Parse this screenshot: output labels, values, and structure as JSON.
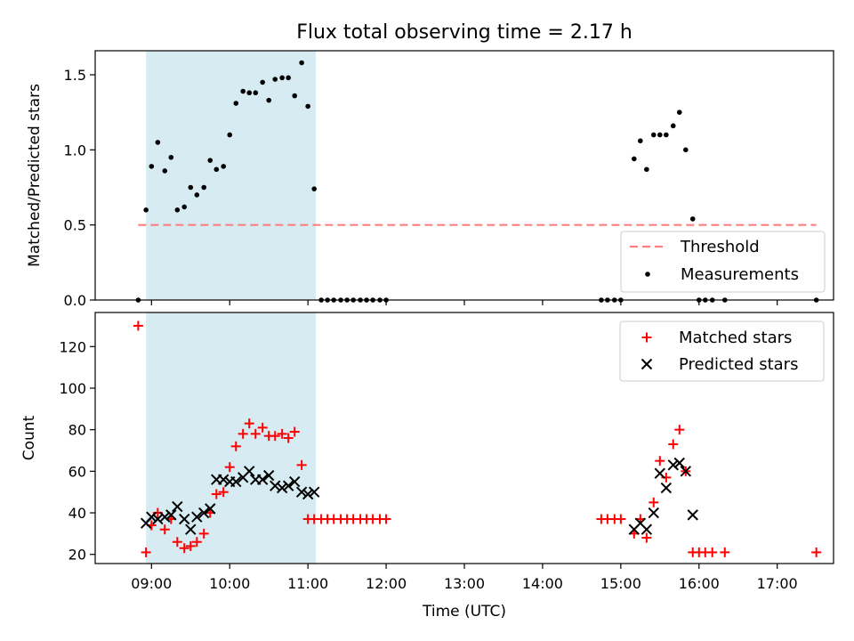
{
  "chart_data": {
    "title": "Flux total observing time = 2.17 h",
    "colors": {
      "highlight": "#add8e6",
      "threshold": "#ff7f7f",
      "matched": "#ff0000",
      "predicted": "#000000",
      "measurement": "#000000"
    },
    "x_unit": "hours UTC (decimal)",
    "xlim": [
      8.28,
      17.72
    ],
    "xticks": [
      9,
      10,
      11,
      12,
      13,
      14,
      15,
      16,
      17
    ],
    "xtick_labels": [
      "09:00",
      "10:00",
      "11:00",
      "12:00",
      "13:00",
      "14:00",
      "15:00",
      "16:00",
      "17:00"
    ],
    "xlabel": "Time (UTC)",
    "highlight_span": [
      8.93,
      11.1
    ],
    "panels": [
      {
        "type": "scatter",
        "ylabel": "Matched/Predicted stars",
        "ylim": [
          0,
          1.66
        ],
        "yticks": [
          0.0,
          0.5,
          1.0,
          1.5
        ],
        "ytick_labels": [
          "0.0",
          "0.5",
          "1.0",
          "1.5"
        ],
        "threshold": {
          "name": "Threshold",
          "value": 0.5,
          "x_range": [
            8.83,
            17.5
          ]
        },
        "series": [
          {
            "name": "Measurements",
            "x": [
              8.83,
              8.93,
              9.0,
              9.08,
              9.17,
              9.25,
              9.33,
              9.42,
              9.5,
              9.58,
              9.67,
              9.75,
              9.83,
              9.92,
              10.0,
              10.08,
              10.17,
              10.25,
              10.33,
              10.42,
              10.5,
              10.58,
              10.67,
              10.75,
              10.83,
              10.92,
              11.0,
              11.08,
              11.17,
              11.25,
              11.33,
              11.42,
              11.5,
              11.58,
              11.67,
              11.75,
              11.83,
              11.92,
              12.0,
              14.75,
              14.83,
              14.92,
              15.0,
              15.17,
              15.25,
              15.33,
              15.42,
              15.5,
              15.58,
              15.67,
              15.75,
              15.83,
              15.92,
              16.0,
              16.08,
              16.17,
              16.33,
              17.5
            ],
            "y": [
              0.0,
              0.6,
              0.89,
              1.05,
              0.86,
              0.95,
              0.6,
              0.62,
              0.75,
              0.7,
              0.75,
              0.93,
              0.87,
              0.89,
              1.1,
              1.31,
              1.39,
              1.38,
              1.38,
              1.45,
              1.33,
              1.47,
              1.48,
              1.48,
              1.36,
              1.58,
              1.29,
              0.74,
              0.0,
              0.0,
              0.0,
              0.0,
              0.0,
              0.0,
              0.0,
              0.0,
              0.0,
              0.0,
              0.0,
              0.0,
              0.0,
              0.0,
              0.0,
              0.94,
              1.06,
              0.87,
              1.1,
              1.1,
              1.1,
              1.16,
              1.25,
              1.0,
              0.54,
              0.0,
              0.0,
              0.0,
              0.0,
              0.0
            ]
          }
        ]
      },
      {
        "type": "scatter",
        "ylabel": "Count",
        "ylim": [
          15.6,
          136.4
        ],
        "yticks": [
          20,
          40,
          60,
          80,
          100,
          120
        ],
        "ytick_labels": [
          "20",
          "40",
          "60",
          "80",
          "100",
          "120"
        ],
        "series": [
          {
            "name": "Matched stars",
            "marker": "plus",
            "x": [
              8.83,
              8.93,
              9.0,
              9.08,
              9.17,
              9.25,
              9.33,
              9.42,
              9.5,
              9.58,
              9.67,
              9.75,
              9.83,
              9.92,
              10.0,
              10.08,
              10.17,
              10.25,
              10.33,
              10.42,
              10.5,
              10.58,
              10.67,
              10.75,
              10.83,
              10.92,
              11.0,
              11.08,
              11.17,
              11.25,
              11.33,
              11.42,
              11.5,
              11.58,
              11.67,
              11.75,
              11.83,
              11.92,
              12.0,
              14.75,
              14.83,
              14.92,
              15.0,
              15.17,
              15.25,
              15.33,
              15.42,
              15.5,
              15.58,
              15.67,
              15.75,
              15.83,
              15.92,
              16.0,
              16.08,
              16.17,
              16.33,
              17.5
            ],
            "y": [
              130,
              21,
              34,
              40,
              32,
              37,
              26,
              23,
              24,
              26,
              30,
              40,
              49,
              50,
              62,
              72,
              78,
              83,
              78,
              81,
              77,
              77,
              78,
              76,
              79,
              63,
              37,
              37,
              37,
              37,
              37,
              37,
              37,
              37,
              37,
              37,
              37,
              37,
              37,
              37,
              37,
              37,
              37,
              30,
              37,
              28,
              45,
              65,
              57,
              73,
              80,
              60,
              21,
              21,
              21,
              21,
              21,
              21
            ]
          },
          {
            "name": "Predicted stars",
            "marker": "x",
            "x": [
              8.93,
              9.0,
              9.08,
              9.17,
              9.25,
              9.33,
              9.42,
              9.5,
              9.58,
              9.67,
              9.75,
              9.83,
              9.92,
              10.0,
              10.08,
              10.17,
              10.25,
              10.33,
              10.42,
              10.5,
              10.58,
              10.67,
              10.75,
              10.83,
              10.92,
              11.0,
              11.08,
              15.17,
              15.25,
              15.33,
              15.42,
              15.5,
              15.58,
              15.67,
              15.75,
              15.83,
              15.92
            ],
            "y": [
              35,
              38,
              37,
              38,
              39,
              43,
              37,
              32,
              38,
              40,
              42,
              56,
              56,
              55,
              55,
              57,
              60,
              56,
              56,
              58,
              53,
              52,
              53,
              55,
              50,
              49,
              50,
              32,
              35,
              32,
              40,
              59,
              52,
              63,
              64,
              60,
              39
            ]
          }
        ]
      }
    ]
  }
}
